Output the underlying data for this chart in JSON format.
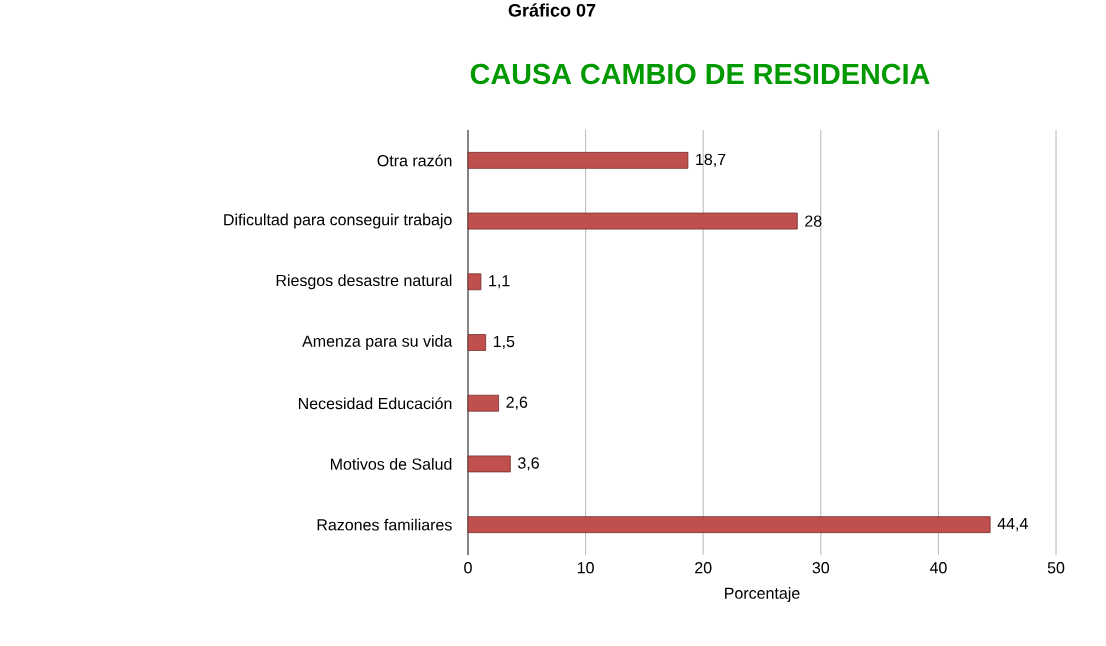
{
  "chart_data": {
    "type": "bar",
    "orientation": "horizontal",
    "title": "CAUSA CAMBIO DE RESIDENCIA",
    "xlabel": "Porcentaje",
    "annotations": [
      "Gráfico 07"
    ],
    "categories": [
      "Otra razón",
      "Dificultad para conseguir trabajo",
      "Riesgos desastre natural",
      "Amenza para su vida",
      "Necesidad Educación",
      "Motivos de Salud",
      "Razones familiares"
    ],
    "values": [
      18.7,
      28,
      1.1,
      1.5,
      2.6,
      3.6,
      44.4
    ],
    "value_labels": [
      "18,7",
      "28",
      "1,1",
      "1,5",
      "2,6",
      "3,6",
      "44,4"
    ],
    "color": "#c0504d",
    "xlim": [
      0,
      50
    ],
    "xticks": [
      0,
      10,
      20,
      30,
      40,
      50
    ],
    "grid": "x"
  }
}
